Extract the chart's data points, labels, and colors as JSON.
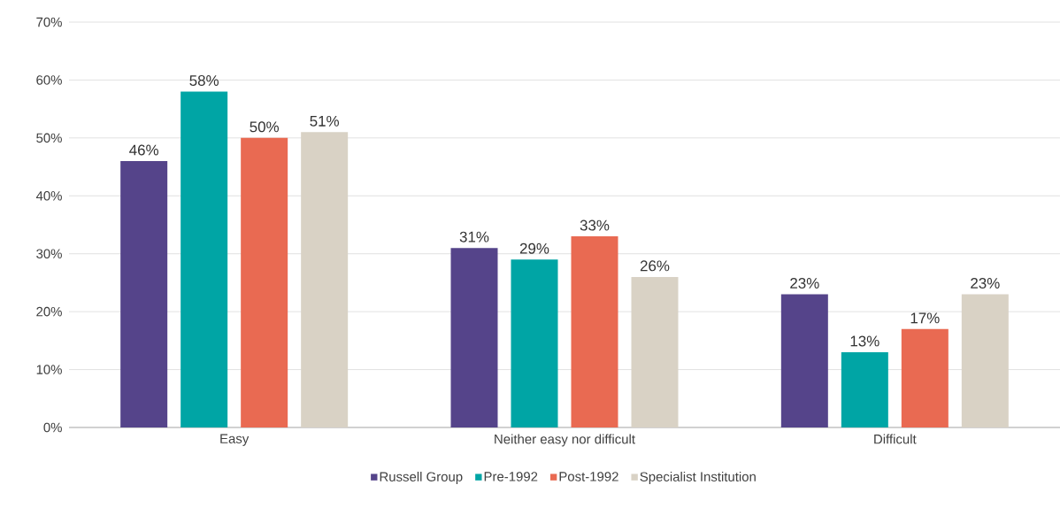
{
  "chart_data": {
    "type": "bar",
    "categories": [
      "Easy",
      "Neither easy nor difficult",
      "Difficult"
    ],
    "series": [
      {
        "name": "Russell Group",
        "color": "#55448a",
        "values": [
          46,
          31,
          23
        ],
        "value_labels": [
          "46%",
          "31%",
          "23%"
        ]
      },
      {
        "name": "Pre-1992",
        "color": "#00a5a5",
        "values": [
          58,
          29,
          13
        ],
        "value_labels": [
          "58%",
          "29%",
          "13%"
        ]
      },
      {
        "name": "Post-1992",
        "color": "#e96a52",
        "values": [
          50,
          33,
          17
        ],
        "value_labels": [
          "50%",
          "33%",
          "17%"
        ]
      },
      {
        "name": "Specialist Institution",
        "color": "#d9d2c5",
        "values": [
          51,
          26,
          23
        ],
        "value_labels": [
          "51%",
          "26%",
          "23%"
        ]
      }
    ],
    "ylim": [
      0,
      70
    ],
    "yticks": [
      {
        "value": 0,
        "label": "0%"
      },
      {
        "value": 10,
        "label": "10%"
      },
      {
        "value": 20,
        "label": "20%"
      },
      {
        "value": 30,
        "label": "30%"
      },
      {
        "value": 40,
        "label": "40%"
      },
      {
        "value": 50,
        "label": "50%"
      },
      {
        "value": 60,
        "label": "60%"
      },
      {
        "value": 70,
        "label": "70%"
      }
    ],
    "grid": "y",
    "legend": "bottom"
  }
}
